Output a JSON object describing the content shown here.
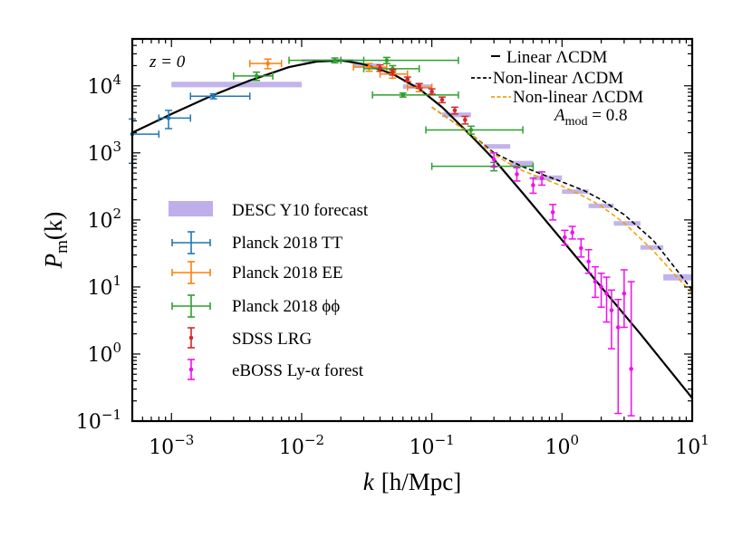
{
  "chart_data": {
    "type": "scatter",
    "title": "",
    "xlabel_var": "k",
    "xlabel_units": "[h/Mpc]",
    "ylabel": "P",
    "ylabel_sub": "m",
    "ylabel_arg": "(k)",
    "xscale": "log",
    "yscale": "log",
    "xlim": [
      0.0005,
      10
    ],
    "ylim": [
      0.1,
      50000
    ],
    "xtick_values": [
      0.001,
      0.01,
      0.1,
      1,
      10
    ],
    "xtick_bases": [
      "10",
      "10",
      "10",
      "10",
      "10"
    ],
    "xtick_exps": [
      "−3",
      "−2",
      "−1",
      "0",
      "1"
    ],
    "ytick_values": [
      0.1,
      1,
      10,
      100,
      1000,
      10000
    ],
    "ytick_bases": [
      "10",
      "10",
      "10",
      "10",
      "10",
      "10"
    ],
    "ytick_exps": [
      "−1",
      "0",
      "1",
      "2",
      "3",
      "4"
    ],
    "annotation_z": "z = 0",
    "annotation_amod": "A",
    "annotation_amod_sub": "mod",
    "annotation_amod_val": " = 0.8",
    "colors": {
      "linear": "#000000",
      "nonlinear": "#000000",
      "nonlinear_amod": "#f0a30a",
      "desc": "#b4a0e6",
      "planck_tt": "#1f77b4",
      "planck_ee": "#ff7f0e",
      "planck_pp": "#2ca02c",
      "sdss": "#d62728",
      "eboss": "#ee10ee"
    },
    "series": [
      {
        "name": "Linear ΛCDM",
        "kind": "line",
        "style": "solid",
        "x": [
          0.0005,
          0.001,
          0.002,
          0.004,
          0.008,
          0.013,
          0.02,
          0.03,
          0.05,
          0.08,
          0.12,
          0.2,
          0.3,
          0.5,
          1,
          2,
          4,
          10
        ],
        "y": [
          2000,
          3800,
          7000,
          12000,
          19000,
          23000,
          24000,
          21000,
          15000,
          9000,
          4800,
          1800,
          800,
          250,
          50,
          10,
          2,
          0.22
        ]
      },
      {
        "name": "Non-linear ΛCDM",
        "kind": "line",
        "style": "dashed",
        "x": [
          0.1,
          0.2,
          0.3,
          0.4,
          0.5,
          0.7,
          1,
          1.5,
          2,
          3,
          5,
          7,
          10
        ],
        "y": [
          4800,
          1900,
          1000,
          760,
          620,
          480,
          370,
          270,
          200,
          120,
          50,
          22,
          9
        ]
      },
      {
        "name": "Non-linear ΛCDM A_mod = 0.8",
        "kind": "line",
        "style": "dashed",
        "x": [
          0.1,
          0.2,
          0.3,
          0.4,
          0.5,
          0.7,
          1,
          1.5,
          2,
          3,
          5,
          7,
          10
        ],
        "y": [
          4800,
          1900,
          950,
          680,
          540,
          420,
          320,
          220,
          160,
          90,
          35,
          17,
          8
        ]
      },
      {
        "name": "DESC Y10 forecast",
        "kind": "band",
        "boxes": [
          {
            "x0": 0.001,
            "x1": 0.01,
            "y0": 9500,
            "y1": 11500
          },
          {
            "x0": 0.01,
            "x1": 0.025,
            "y0": 22500,
            "y1": 25000
          },
          {
            "x0": 0.025,
            "x1": 0.04,
            "y0": 19000,
            "y1": 21500
          },
          {
            "x0": 0.06,
            "x1": 0.1,
            "y0": 9000,
            "y1": 10500
          },
          {
            "x0": 0.12,
            "x1": 0.2,
            "y0": 3400,
            "y1": 4000
          },
          {
            "x0": 0.25,
            "x1": 0.4,
            "y0": 1150,
            "y1": 1350
          },
          {
            "x0": 0.4,
            "x1": 0.6,
            "y0": 640,
            "y1": 760
          },
          {
            "x0": 0.6,
            "x1": 1.0,
            "y0": 390,
            "y1": 460
          },
          {
            "x0": 1.0,
            "x1": 1.6,
            "y0": 245,
            "y1": 285
          },
          {
            "x0": 1.6,
            "x1": 2.5,
            "y0": 150,
            "y1": 175
          },
          {
            "x0": 2.5,
            "x1": 4,
            "y0": 82,
            "y1": 96
          },
          {
            "x0": 4,
            "x1": 6,
            "y0": 36,
            "y1": 42
          },
          {
            "x0": 6,
            "x1": 10,
            "y0": 12.5,
            "y1": 15.5
          }
        ]
      },
      {
        "name": "Planck 2018 TT",
        "kind": "errorbar",
        "points": [
          {
            "x": 0.0005,
            "y": 1900,
            "xlo": 0.00045,
            "xhi": 0.0008,
            "ylo": 700,
            "yhi": 3200
          },
          {
            "x": 0.00095,
            "y": 3300,
            "xlo": 0.0008,
            "xhi": 0.0014,
            "ylo": 2300,
            "yhi": 4300
          },
          {
            "x": 0.0021,
            "y": 7000,
            "xlo": 0.0014,
            "xhi": 0.004,
            "ylo": 6400,
            "yhi": 7600
          }
        ]
      },
      {
        "name": "Planck 2018 EE",
        "kind": "errorbar",
        "points": [
          {
            "x": 0.0055,
            "y": 21500,
            "xlo": 0.004,
            "xhi": 0.007,
            "ylo": 18000,
            "yhi": 25000
          },
          {
            "x": 0.033,
            "y": 19000,
            "xlo": 0.025,
            "xhi": 0.045,
            "ylo": 16500,
            "yhi": 21500
          },
          {
            "x": 0.05,
            "y": 15000,
            "xlo": 0.04,
            "xhi": 0.065,
            "ylo": 13000,
            "yhi": 17000
          },
          {
            "x": 0.08,
            "y": 9500,
            "xlo": 0.065,
            "xhi": 0.1,
            "ylo": 8200,
            "yhi": 10800
          }
        ]
      },
      {
        "name": "Planck 2018 ϕϕ",
        "kind": "errorbar",
        "points": [
          {
            "x": 0.0045,
            "y": 14000,
            "xlo": 0.003,
            "xhi": 0.006,
            "ylo": 12000,
            "yhi": 16000
          },
          {
            "x": 0.018,
            "y": 24000,
            "xlo": 0.008,
            "xhi": 0.03,
            "ylo": 22000,
            "yhi": 26000
          },
          {
            "x": 0.045,
            "y": 24000,
            "xlo": 0.02,
            "xhi": 0.16,
            "ylo": 21500,
            "yhi": 26500
          },
          {
            "x": 0.05,
            "y": 18000,
            "xlo": 0.03,
            "xhi": 0.08,
            "ylo": 16000,
            "yhi": 20000
          },
          {
            "x": 0.06,
            "y": 7300,
            "xlo": 0.035,
            "xhi": 0.16,
            "ylo": 6800,
            "yhi": 7800
          },
          {
            "x": 0.2,
            "y": 2200,
            "xlo": 0.09,
            "xhi": 0.5,
            "ylo": 1900,
            "yhi": 2500
          },
          {
            "x": 0.3,
            "y": 630,
            "xlo": 0.1,
            "xhi": 0.6,
            "ylo": 540,
            "yhi": 720
          }
        ]
      },
      {
        "name": "SDSS LRG",
        "kind": "errorbar",
        "points": [
          {
            "x": 0.04,
            "y": 18500,
            "xlo": 0.04,
            "xhi": 0.04,
            "ylo": 16500,
            "yhi": 20500
          },
          {
            "x": 0.05,
            "y": 16000,
            "xlo": 0.05,
            "xhi": 0.05,
            "ylo": 14500,
            "yhi": 17500
          },
          {
            "x": 0.065,
            "y": 12500,
            "xlo": 0.065,
            "xhi": 0.065,
            "ylo": 11500,
            "yhi": 13500
          },
          {
            "x": 0.08,
            "y": 10000,
            "xlo": 0.08,
            "xhi": 0.08,
            "ylo": 9200,
            "yhi": 10800
          },
          {
            "x": 0.1,
            "y": 8200,
            "xlo": 0.1,
            "xhi": 0.1,
            "ylo": 7500,
            "yhi": 9000
          },
          {
            "x": 0.12,
            "y": 6200,
            "xlo": 0.12,
            "xhi": 0.12,
            "ylo": 5600,
            "yhi": 6800
          },
          {
            "x": 0.15,
            "y": 4300,
            "xlo": 0.15,
            "xhi": 0.15,
            "ylo": 3800,
            "yhi": 4800
          },
          {
            "x": 0.18,
            "y": 3100,
            "xlo": 0.18,
            "xhi": 0.18,
            "ylo": 2700,
            "yhi": 3500
          }
        ]
      },
      {
        "name": "eBOSS Ly-α forest",
        "kind": "errorbar",
        "points": [
          {
            "x": 0.3,
            "y": 800,
            "xlo": 0.3,
            "xhi": 0.3,
            "ylo": 620,
            "yhi": 1000
          },
          {
            "x": 0.45,
            "y": 480,
            "xlo": 0.45,
            "xhi": 0.45,
            "ylo": 380,
            "yhi": 600
          },
          {
            "x": 0.6,
            "y": 330,
            "xlo": 0.6,
            "xhi": 0.6,
            "ylo": 250,
            "yhi": 420
          },
          {
            "x": 0.7,
            "y": 420,
            "xlo": 0.7,
            "xhi": 0.7,
            "ylo": 330,
            "yhi": 520
          },
          {
            "x": 0.85,
            "y": 130,
            "xlo": 0.85,
            "xhi": 0.85,
            "ylo": 100,
            "yhi": 170
          },
          {
            "x": 1.05,
            "y": 55,
            "xlo": 1.05,
            "xhi": 1.05,
            "ylo": 42,
            "yhi": 70
          },
          {
            "x": 1.2,
            "y": 65,
            "xlo": 1.2,
            "xhi": 1.2,
            "ylo": 52,
            "yhi": 80
          },
          {
            "x": 1.4,
            "y": 38,
            "xlo": 1.4,
            "xhi": 1.4,
            "ylo": 28,
            "yhi": 52
          },
          {
            "x": 1.6,
            "y": 24,
            "xlo": 1.6,
            "xhi": 1.6,
            "ylo": 16,
            "yhi": 36
          },
          {
            "x": 1.8,
            "y": 12,
            "xlo": 1.8,
            "xhi": 1.8,
            "ylo": 7,
            "yhi": 20
          },
          {
            "x": 2.0,
            "y": 10,
            "xlo": 2.0,
            "xhi": 2.0,
            "ylo": 5,
            "yhi": 16
          },
          {
            "x": 2.2,
            "y": 8,
            "xlo": 2.2,
            "xhi": 2.2,
            "ylo": 3,
            "yhi": 14
          },
          {
            "x": 2.4,
            "y": 4.5,
            "xlo": 2.4,
            "xhi": 2.4,
            "ylo": 1.2,
            "yhi": 9
          },
          {
            "x": 2.7,
            "y": 2.5,
            "xlo": 2.7,
            "xhi": 2.7,
            "ylo": 0.13,
            "yhi": 6.5
          },
          {
            "x": 3.0,
            "y": 8,
            "xlo": 3.0,
            "xhi": 3.0,
            "ylo": 2.5,
            "yhi": 18
          },
          {
            "x": 3.4,
            "y": 0.6,
            "xlo": 3.4,
            "xhi": 3.4,
            "ylo": 0.12,
            "yhi": 12
          }
        ]
      }
    ],
    "legend_top": [
      "Linear ΛCDM",
      "Non-linear ΛCDM",
      "Non-linear ΛCDM"
    ],
    "legend_bottom": [
      "DESC Y10 forecast",
      "Planck 2018 TT",
      "Planck 2018 EE",
      "Planck 2018 ϕϕ",
      "SDSS LRG",
      "eBOSS Ly-α forest"
    ]
  }
}
